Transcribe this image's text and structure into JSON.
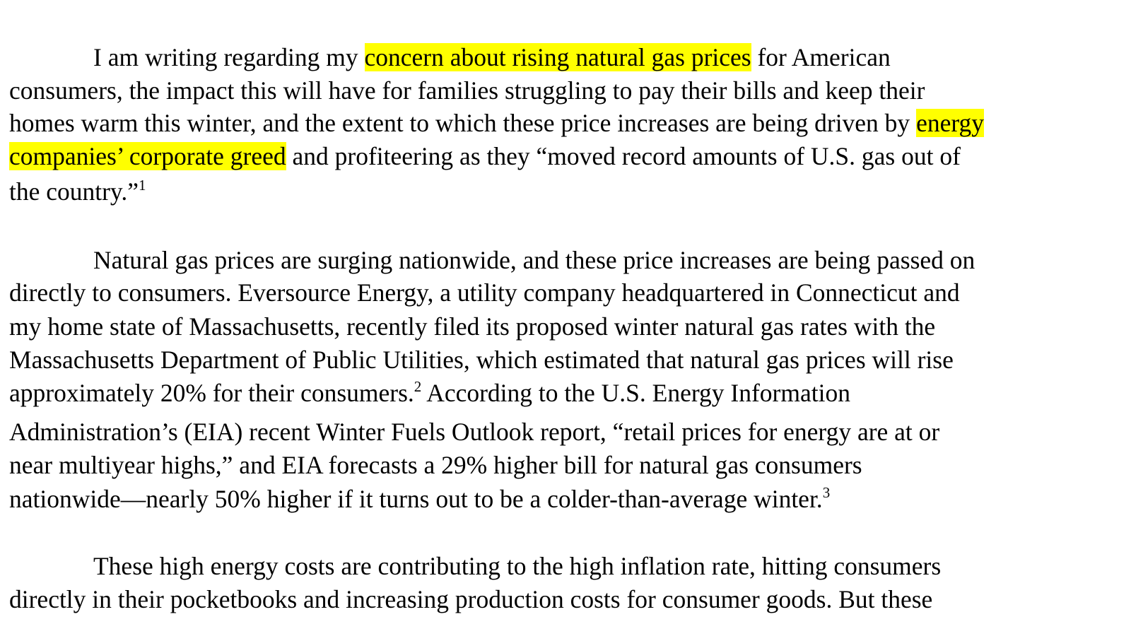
{
  "document": {
    "paragraphs": [
      {
        "lines": [
          {
            "indent": true,
            "segments": [
              {
                "text": "I am writing regarding my "
              },
              {
                "text": "concern about rising natural gas prices",
                "highlight": true
              },
              {
                "text": " for American"
              }
            ]
          },
          {
            "segments": [
              {
                "text": "consumers, the impact this will have for families struggling to pay their bills and keep their"
              }
            ]
          },
          {
            "segments": [
              {
                "text": "homes warm this winter, and the extent to which these price increases are being driven by "
              },
              {
                "text": "energy",
                "highlight": true
              }
            ]
          },
          {
            "segments": [
              {
                "text": "companies’ corporate greed",
                "highlight": true
              },
              {
                "text": " and profiteering as they “moved record amounts of U.S. gas out of"
              }
            ]
          },
          {
            "segments": [
              {
                "text": "the country.”"
              },
              {
                "text": "1",
                "superscript": true
              }
            ]
          }
        ]
      },
      {
        "lines": [
          {
            "indent": true,
            "segments": [
              {
                "text": "Natural gas prices are surging nationwide, and these price increases are being passed on"
              }
            ]
          },
          {
            "segments": [
              {
                "text": "directly to consumers. Eversource Energy, a utility company headquartered in Connecticut and"
              }
            ]
          },
          {
            "segments": [
              {
                "text": "my home state of Massachusetts, recently filed its proposed winter natural gas rates with the"
              }
            ]
          },
          {
            "segments": [
              {
                "text": "Massachusetts Department of Public Utilities, which estimated that natural gas prices will rise"
              }
            ]
          },
          {
            "segments": [
              {
                "text": "approximately 20% for their consumers."
              },
              {
                "text": "2",
                "superscript": true
              },
              {
                "text": " According to the U.S. Energy Information"
              }
            ]
          },
          {
            "segments": [
              {
                "text": "Administration’s (EIA) recent Winter Fuels Outlook report, “retail prices for energy are at or"
              }
            ]
          },
          {
            "segments": [
              {
                "text": "near multiyear highs,” and EIA forecasts a 29% higher bill for natural gas consumers"
              }
            ]
          },
          {
            "segments": [
              {
                "text": "nationwide—nearly 50% higher if it turns out to be a colder-than-average winter."
              },
              {
                "text": "3",
                "superscript": true
              }
            ]
          }
        ]
      },
      {
        "lines": [
          {
            "indent": true,
            "segments": [
              {
                "text": "These high energy costs are contributing to the high inflation rate, hitting consumers"
              }
            ]
          },
          {
            "segments": [
              {
                "text": "directly in their pocketbooks and increasing production costs for consumer goods. But these"
              }
            ]
          }
        ]
      }
    ]
  }
}
